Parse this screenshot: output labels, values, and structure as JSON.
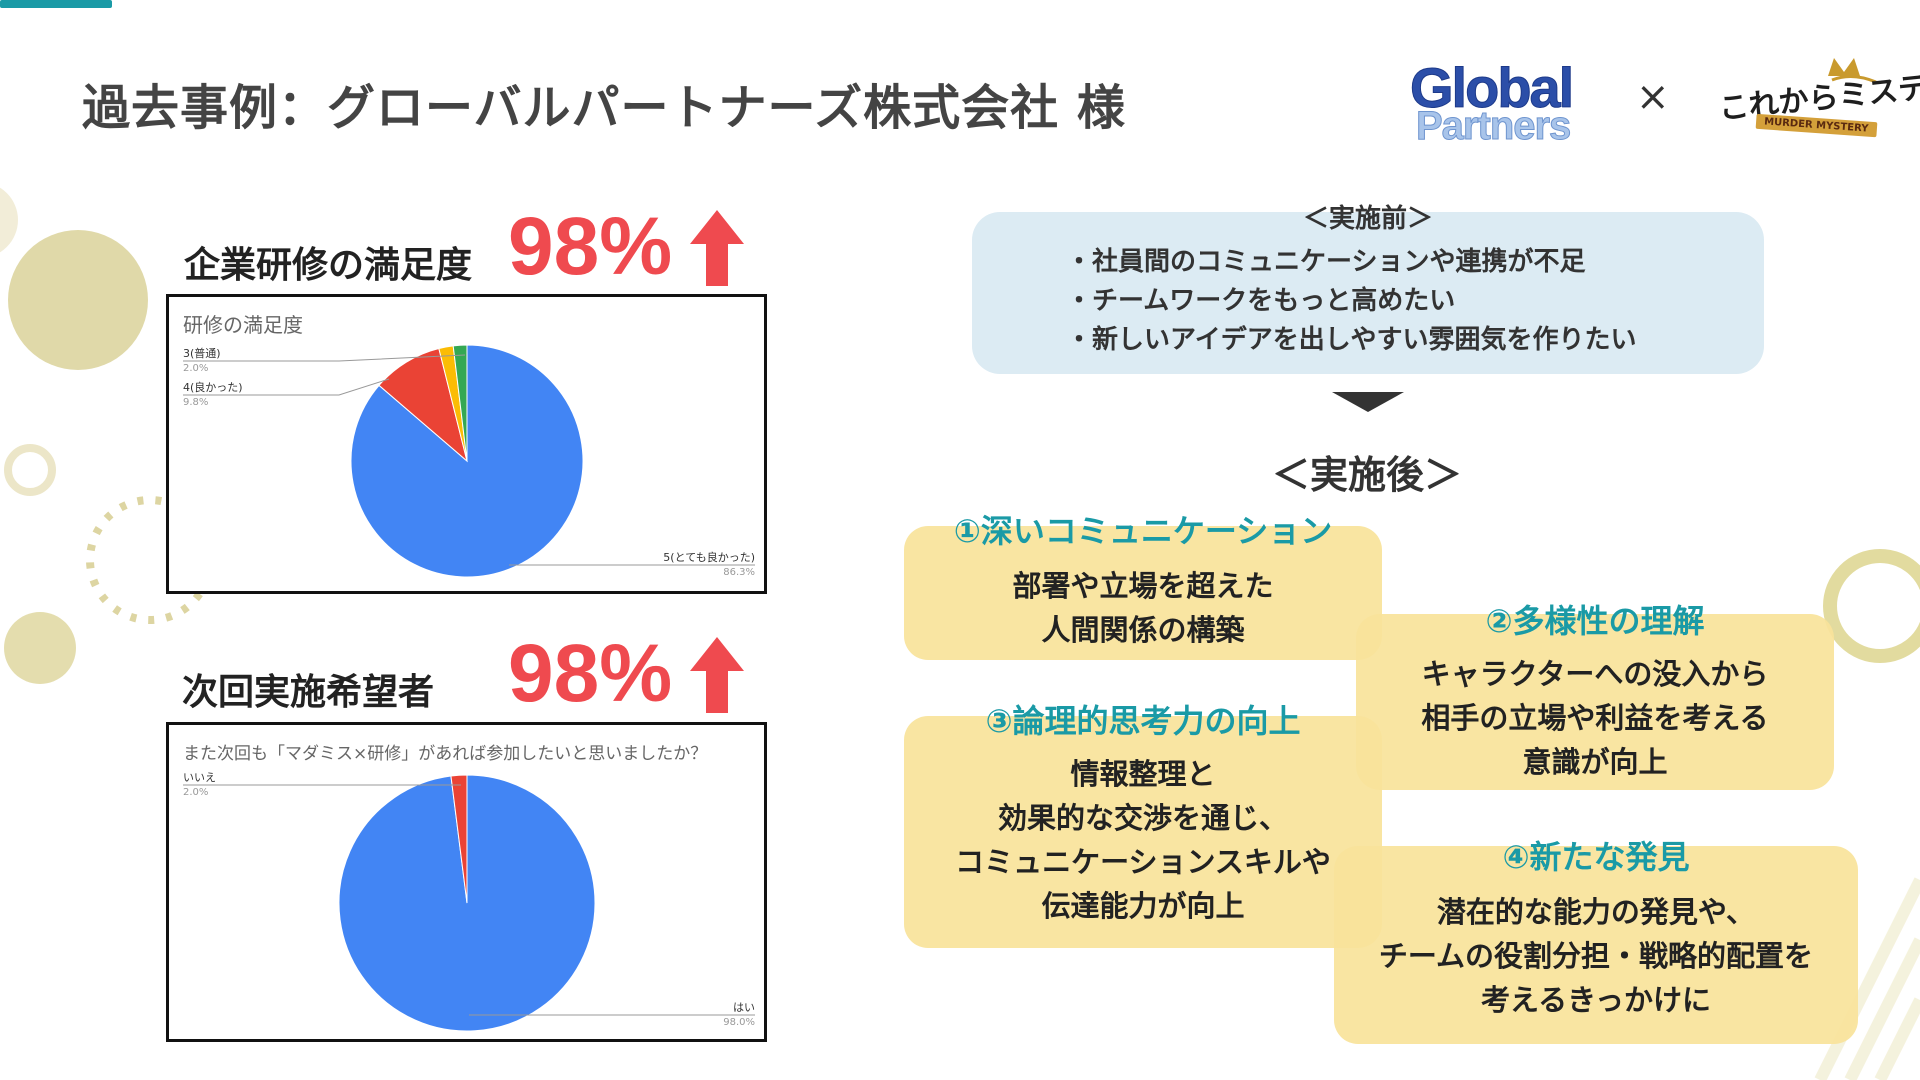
{
  "header": {
    "title": "過去事例：グローバルパートナーズ株式会社 様",
    "logo_left_line1": "Global",
    "logo_left_line2": "Partners",
    "times": "×",
    "logo_right_main": "これからミステリー",
    "logo_right_sub": "MURDER MYSTERY"
  },
  "metrics": [
    {
      "label": "企業研修の満足度",
      "percent": "98%"
    },
    {
      "label": "次回実施希望者",
      "percent": "98%"
    }
  ],
  "colors": {
    "accent": "#1a9aa6",
    "red": "#ef4a4f",
    "blue": "#4285f4",
    "pie_red": "#ea4335",
    "pie_yellow": "#fbbc04",
    "pie_green": "#34a853",
    "card": "#f9e39a",
    "before_bg": "#dcebf3"
  },
  "chart_data": [
    {
      "type": "pie",
      "title": "研修の満足度",
      "labels": [
        "5(とても良かった)",
        "4(良かった)",
        "3(普通)"
      ],
      "values": [
        86.3,
        9.8,
        2.0
      ],
      "value_labels": [
        "86.3%",
        "9.8%",
        "2.0%"
      ],
      "colors": [
        "#4285f4",
        "#ea4335",
        "#fbbc04",
        "#34a853"
      ]
    },
    {
      "type": "pie",
      "title": "また次回も「マダミス×研修」があれば参加したいと思いましたか？",
      "labels": [
        "はい",
        "いいえ"
      ],
      "values": [
        98.0,
        2.0
      ],
      "value_labels": [
        "98.0%",
        "2.0%"
      ],
      "colors": [
        "#4285f4",
        "#ea4335"
      ]
    }
  ],
  "before": {
    "title": "＜実施前＞",
    "items": [
      "・社員間のコミュニケーションや連携が不足",
      "・チームワークをもっと高めたい",
      "・新しいアイデアを出しやすい雰囲気を作りたい"
    ]
  },
  "after": {
    "title": "＜実施後＞",
    "cards": [
      {
        "head": "①深いコミュニケーション",
        "lines": [
          "部署や立場を超えた",
          "人間関係の構築"
        ]
      },
      {
        "head": "②多様性の理解",
        "lines": [
          "キャラクターへの没入から",
          "相手の立場や利益を考える",
          "意識が向上"
        ]
      },
      {
        "head": "③論理的思考力の向上",
        "lines": [
          "情報整理と",
          "効果的な交渉を通じ、",
          "コミュニケーションスキルや",
          "伝達能力が向上"
        ]
      },
      {
        "head": "④新たな発見",
        "lines": [
          "潜在的な能力の発見や、",
          "チームの役割分担・戦略的配置を",
          "考えるきっかけに"
        ]
      }
    ]
  }
}
